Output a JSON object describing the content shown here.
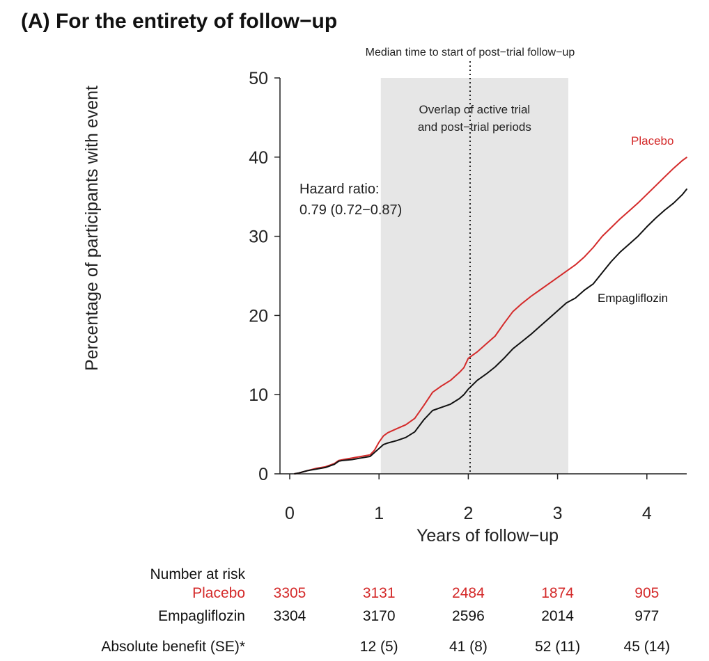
{
  "chart_data": {
    "type": "line",
    "title": "(A) For the entirety of follow−up",
    "xlabel": "Years of follow−up",
    "ylabel": "Percentage of participants with event",
    "xlim": [
      0,
      4.45
    ],
    "ylim": [
      0,
      50
    ],
    "x_ticks": [
      "0",
      "1",
      "2",
      "3",
      "4"
    ],
    "y_ticks": [
      "0",
      "10",
      "20",
      "30",
      "40",
      "50"
    ],
    "overlap_region": {
      "x_range": [
        1.02,
        3.12
      ],
      "label_line1": "Overlap of active trial",
      "label_line2": "and post−trial periods"
    },
    "median_line": {
      "x": 2.02,
      "label": "Median time to start of post−trial follow−up"
    },
    "hazard_ratio": {
      "label": "Hazard ratio:",
      "value": "0.79 (0.72−0.87)"
    },
    "series": [
      {
        "name": "Placebo",
        "color": "#d42a2a",
        "x": [
          0.05,
          0.1,
          0.2,
          0.3,
          0.4,
          0.5,
          0.55,
          0.6,
          0.7,
          0.8,
          0.9,
          0.95,
          1.0,
          1.05,
          1.1,
          1.2,
          1.3,
          1.4,
          1.5,
          1.6,
          1.7,
          1.8,
          1.9,
          1.95,
          2.0,
          2.1,
          2.2,
          2.3,
          2.4,
          2.5,
          2.6,
          2.7,
          2.8,
          2.9,
          3.0,
          3.1,
          3.2,
          3.3,
          3.4,
          3.5,
          3.6,
          3.7,
          3.8,
          3.9,
          4.0,
          4.1,
          4.2,
          4.3,
          4.4,
          4.45
        ],
        "y": [
          0,
          0.1,
          0.4,
          0.7,
          0.9,
          1.3,
          1.7,
          1.8,
          2.0,
          2.2,
          2.4,
          3.0,
          4.0,
          4.8,
          5.2,
          5.7,
          6.2,
          7.0,
          8.6,
          10.3,
          11.1,
          11.8,
          12.8,
          13.4,
          14.6,
          15.4,
          16.4,
          17.4,
          19.0,
          20.5,
          21.5,
          22.4,
          23.2,
          24.0,
          24.8,
          25.6,
          26.4,
          27.4,
          28.6,
          30.0,
          31.1,
          32.2,
          33.2,
          34.2,
          35.3,
          36.4,
          37.5,
          38.6,
          39.6,
          40.0
        ]
      },
      {
        "name": "Empagliflozin",
        "color": "#111111",
        "x": [
          0.05,
          0.1,
          0.2,
          0.3,
          0.4,
          0.5,
          0.55,
          0.6,
          0.7,
          0.8,
          0.9,
          0.95,
          1.0,
          1.05,
          1.1,
          1.2,
          1.3,
          1.4,
          1.5,
          1.6,
          1.7,
          1.8,
          1.9,
          1.95,
          2.0,
          2.1,
          2.2,
          2.3,
          2.4,
          2.5,
          2.6,
          2.7,
          2.8,
          2.9,
          3.0,
          3.1,
          3.2,
          3.3,
          3.4,
          3.5,
          3.6,
          3.7,
          3.8,
          3.9,
          4.0,
          4.1,
          4.2,
          4.3,
          4.4,
          4.45
        ],
        "y": [
          0,
          0.1,
          0.4,
          0.6,
          0.8,
          1.2,
          1.6,
          1.7,
          1.8,
          2.0,
          2.2,
          2.7,
          3.2,
          3.7,
          3.9,
          4.2,
          4.6,
          5.3,
          6.8,
          8.0,
          8.4,
          8.8,
          9.5,
          10.0,
          10.7,
          11.8,
          12.6,
          13.5,
          14.6,
          15.8,
          16.7,
          17.6,
          18.6,
          19.6,
          20.6,
          21.6,
          22.2,
          23.2,
          24.0,
          25.4,
          26.8,
          28.0,
          29.0,
          30.0,
          31.2,
          32.3,
          33.3,
          34.2,
          35.3,
          36.0
        ]
      }
    ]
  },
  "risk_table": {
    "header": "Number at risk",
    "rows": [
      {
        "label": "Placebo",
        "color": "#d42a2a",
        "values": [
          "3305",
          "3131",
          "2484",
          "1874",
          "905"
        ]
      },
      {
        "label": "Empagliflozin",
        "color": "#111111",
        "values": [
          "3304",
          "3170",
          "2596",
          "2014",
          "977"
        ]
      },
      {
        "label": "Absolute benefit (SE)*",
        "color": "#111111",
        "values": [
          "",
          "12 (5)",
          "41 (8)",
          "52 (11)",
          "45 (14)"
        ]
      }
    ]
  }
}
